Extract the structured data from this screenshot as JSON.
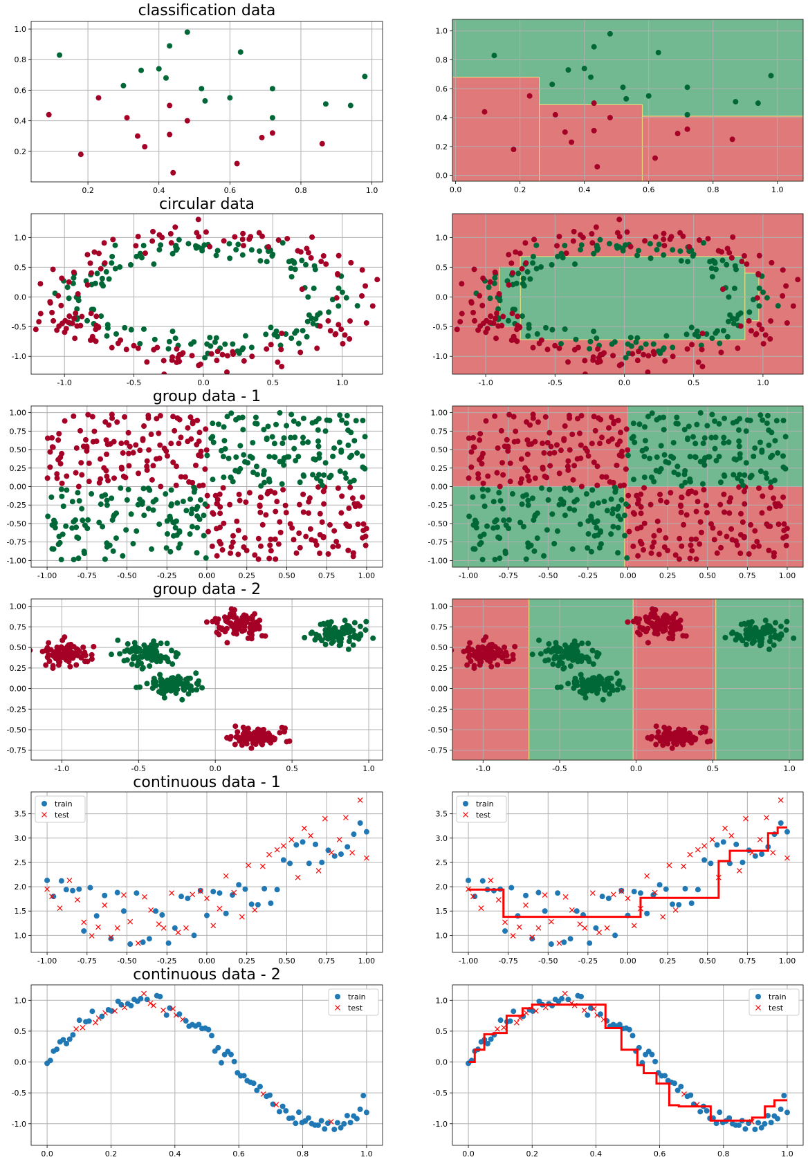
{
  "colors": {
    "red": "#a50026",
    "green": "#006837",
    "blue": "#1f77b4",
    "test_red": "#ff0000",
    "bg_red": "#e07a7a",
    "bg_green": "#72b890",
    "grid": "#b0b0b0"
  },
  "chart_data": [
    {
      "id": "p0",
      "type": "scatter",
      "title": "classification data",
      "grid": true,
      "xlim": [
        0.04,
        1.03
      ],
      "ylim": [
        0.0,
        1.05
      ],
      "xticks": [
        "0.2",
        "0.4",
        "0.6",
        "0.8",
        "1.0"
      ],
      "yticks": [
        "0.2",
        "0.4",
        "0.6",
        "0.8",
        "1.0"
      ],
      "series": [
        {
          "class": "red",
          "x": [
            0.09,
            0.18,
            0.23,
            0.31,
            0.34,
            0.36,
            0.43,
            0.43,
            0.44,
            0.48,
            0.62,
            0.69,
            0.72,
            0.86
          ],
          "y": [
            0.44,
            0.18,
            0.55,
            0.42,
            0.3,
            0.23,
            0.31,
            0.5,
            0.06,
            0.4,
            0.12,
            0.29,
            0.32,
            0.25
          ]
        },
        {
          "class": "green",
          "x": [
            0.12,
            0.3,
            0.35,
            0.4,
            0.42,
            0.43,
            0.48,
            0.52,
            0.53,
            0.6,
            0.63,
            0.72,
            0.72,
            0.87,
            0.94,
            0.98
          ],
          "y": [
            0.83,
            0.63,
            0.73,
            0.74,
            0.68,
            0.89,
            0.98,
            0.61,
            0.53,
            0.55,
            0.85,
            0.61,
            0.42,
            0.51,
            0.5,
            0.69
          ]
        }
      ]
    },
    {
      "id": "p1",
      "type": "scatter",
      "title": "",
      "grid": true,
      "background": "regions",
      "xlim": [
        -0.01,
        1.08
      ],
      "ylim": [
        -0.04,
        1.08
      ],
      "xticks": [
        "0.0",
        "0.2",
        "0.4",
        "0.6",
        "0.8",
        "1.0"
      ],
      "yticks": [
        "0.0",
        "0.2",
        "0.4",
        "0.6",
        "0.8",
        "1.0"
      ],
      "regions": [
        {
          "class": "red",
          "x0": -0.01,
          "x1": 0.26,
          "y0": -0.04,
          "y1": 0.68
        },
        {
          "class": "red",
          "x0": 0.26,
          "x1": 0.58,
          "y0": -0.04,
          "y1": 0.49
        },
        {
          "class": "red",
          "x0": 0.58,
          "x1": 1.08,
          "y0": -0.04,
          "y1": 0.41
        }
      ],
      "series": [
        {
          "class": "red",
          "x": [
            0.09,
            0.18,
            0.23,
            0.31,
            0.34,
            0.36,
            0.43,
            0.43,
            0.44,
            0.48,
            0.62,
            0.69,
            0.72,
            0.86
          ],
          "y": [
            0.44,
            0.18,
            0.55,
            0.42,
            0.3,
            0.23,
            0.31,
            0.5,
            0.06,
            0.4,
            0.12,
            0.29,
            0.32,
            0.25
          ]
        },
        {
          "class": "green",
          "x": [
            0.12,
            0.3,
            0.35,
            0.4,
            0.42,
            0.43,
            0.48,
            0.52,
            0.53,
            0.6,
            0.63,
            0.72,
            0.72,
            0.87,
            0.94,
            0.98
          ],
          "y": [
            0.83,
            0.63,
            0.73,
            0.74,
            0.68,
            0.89,
            0.98,
            0.61,
            0.53,
            0.55,
            0.85,
            0.61,
            0.42,
            0.51,
            0.5,
            0.69
          ]
        }
      ]
    },
    {
      "id": "p2",
      "type": "scatter",
      "title": "circular data",
      "grid": true,
      "xlim": [
        -1.24,
        1.29
      ],
      "ylim": [
        -1.3,
        1.4
      ],
      "xticks": [
        "-1.0",
        "-0.5",
        "0.0",
        "0.5",
        "1.0"
      ],
      "yticks": [
        "-1.0",
        "-0.5",
        "0.0",
        "0.5",
        "1.0"
      ],
      "generator": "circles",
      "count_per_class": 150
    },
    {
      "id": "p3",
      "type": "scatter",
      "title": "",
      "grid": true,
      "background": "regions",
      "xlim": [
        -1.24,
        1.29
      ],
      "ylim": [
        -1.3,
        1.4
      ],
      "xticks": [
        "-1.0",
        "-0.5",
        "0.0",
        "0.5",
        "1.0"
      ],
      "yticks": [
        "-1.0",
        "-0.5",
        "0.0",
        "0.5",
        "1.0"
      ],
      "generator": "circles",
      "count_per_class": 150,
      "base": "red",
      "regions": [
        {
          "class": "green",
          "x0": -0.75,
          "x1": 0.87,
          "y0": -0.72,
          "y1": 0.68
        },
        {
          "class": "green",
          "x0": -0.9,
          "x1": -0.75,
          "y0": -0.5,
          "y1": 0.5
        },
        {
          "class": "green",
          "x0": 0.87,
          "x1": 0.97,
          "y0": -0.4,
          "y1": 0.4
        }
      ]
    },
    {
      "id": "p4",
      "type": "scatter",
      "title": "group data - 1",
      "grid": true,
      "xlim": [
        -1.1,
        1.1
      ],
      "ylim": [
        -1.09,
        1.09
      ],
      "xticks": [
        "-1.00",
        "-0.75",
        "-0.50",
        "-0.25",
        "0.00",
        "0.25",
        "0.50",
        "0.75",
        "1.00"
      ],
      "yticks": [
        "-1.00",
        "-0.75",
        "-0.50",
        "-0.25",
        "0.00",
        "0.25",
        "0.50",
        "0.75",
        "1.00"
      ],
      "generator": "quadrants",
      "count": 500
    },
    {
      "id": "p5",
      "type": "scatter",
      "title": "",
      "grid": true,
      "background": "regions",
      "xlim": [
        -1.1,
        1.1
      ],
      "ylim": [
        -1.09,
        1.09
      ],
      "xticks": [
        "-1.00",
        "-0.75",
        "-0.50",
        "-0.25",
        "0.00",
        "0.25",
        "0.50",
        "0.75",
        "1.00"
      ],
      "yticks": [
        "-1.00",
        "-0.75",
        "-0.50",
        "-0.25",
        "0.00",
        "0.25",
        "0.50",
        "0.75",
        "1.00"
      ],
      "generator": "quadrants",
      "count": 500,
      "regions": [
        {
          "class": "red",
          "x0": -1.1,
          "x1": 0.0,
          "y0": 0.0,
          "y1": 1.09
        },
        {
          "class": "green",
          "x0": 0.0,
          "x1": 1.1,
          "y0": 0.0,
          "y1": 1.09
        },
        {
          "class": "green",
          "x0": -1.1,
          "x1": -0.02,
          "y0": -1.09,
          "y1": 0.0
        },
        {
          "class": "red",
          "x0": -0.02,
          "x1": 1.1,
          "y0": -1.09,
          "y1": 0.0
        }
      ]
    },
    {
      "id": "p6",
      "type": "scatter",
      "title": "group data - 2",
      "grid": true,
      "xlim": [
        -1.2,
        1.09
      ],
      "ylim": [
        -0.87,
        1.09
      ],
      "xticks": [
        "-1.0",
        "-0.5",
        "0.0",
        "0.5",
        "1.0"
      ],
      "yticks": [
        "-0.75",
        "-0.50",
        "-0.25",
        "0.00",
        "0.25",
        "0.50",
        "0.75",
        "1.00"
      ],
      "generator": "blobs",
      "clusters": [
        {
          "class": "red",
          "cx": -0.98,
          "cy": 0.41,
          "sx": 0.08,
          "sy": 0.07,
          "n": 90
        },
        {
          "class": "green",
          "cx": -0.45,
          "cy": 0.42,
          "sx": 0.09,
          "sy": 0.07,
          "n": 90
        },
        {
          "class": "green",
          "cx": -0.26,
          "cy": 0.03,
          "sx": 0.09,
          "sy": 0.06,
          "n": 90
        },
        {
          "class": "red",
          "cx": 0.17,
          "cy": 0.79,
          "sx": 0.08,
          "sy": 0.08,
          "n": 90
        },
        {
          "class": "red",
          "cx": 0.27,
          "cy": -0.58,
          "sx": 0.09,
          "sy": 0.05,
          "n": 90
        },
        {
          "class": "green",
          "cx": 0.78,
          "cy": 0.66,
          "sx": 0.09,
          "sy": 0.07,
          "n": 90
        }
      ]
    },
    {
      "id": "p7",
      "type": "scatter",
      "title": "",
      "grid": true,
      "background": "regions",
      "xlim": [
        -1.2,
        1.09
      ],
      "ylim": [
        -0.87,
        1.09
      ],
      "xticks": [
        "-1.0",
        "-0.5",
        "0.0",
        "0.5",
        "1.0"
      ],
      "yticks": [
        "-0.75",
        "-0.50",
        "-0.25",
        "0.00",
        "0.25",
        "0.50",
        "0.75",
        "1.00"
      ],
      "generator": "blobs",
      "clusters": [
        {
          "class": "red",
          "cx": -0.98,
          "cy": 0.41,
          "sx": 0.08,
          "sy": 0.07,
          "n": 90
        },
        {
          "class": "green",
          "cx": -0.45,
          "cy": 0.42,
          "sx": 0.09,
          "sy": 0.07,
          "n": 90
        },
        {
          "class": "green",
          "cx": -0.26,
          "cy": 0.03,
          "sx": 0.09,
          "sy": 0.06,
          "n": 90
        },
        {
          "class": "red",
          "cx": 0.17,
          "cy": 0.79,
          "sx": 0.08,
          "sy": 0.08,
          "n": 90
        },
        {
          "class": "red",
          "cx": 0.27,
          "cy": -0.58,
          "sx": 0.09,
          "sy": 0.05,
          "n": 90
        },
        {
          "class": "green",
          "cx": 0.78,
          "cy": 0.66,
          "sx": 0.09,
          "sy": 0.07,
          "n": 90
        }
      ],
      "regions": [
        {
          "class": "red",
          "x0": -1.2,
          "x1": -0.7,
          "y0": -0.87,
          "y1": 1.09
        },
        {
          "class": "green",
          "x0": -0.7,
          "x1": -0.02,
          "y0": -0.87,
          "y1": 1.09
        },
        {
          "class": "red",
          "x0": -0.02,
          "x1": 0.52,
          "y0": -0.87,
          "y1": 1.09
        },
        {
          "class": "green",
          "x0": 0.52,
          "x1": 1.09,
          "y0": -0.87,
          "y1": 1.09
        }
      ]
    },
    {
      "id": "p8",
      "type": "scatter",
      "title": "continuous data - 1",
      "grid": true,
      "legend": "top-left",
      "xlim": [
        -1.1,
        1.1
      ],
      "ylim": [
        0.65,
        3.95
      ],
      "xticks": [
        "-1.00",
        "-0.75",
        "-0.50",
        "-0.25",
        "0.00",
        "0.25",
        "0.50",
        "0.75",
        "1.00"
      ],
      "yticks": [
        "1.0",
        "1.5",
        "2.0",
        "2.5",
        "3.0",
        "3.5"
      ],
      "legend_labels": [
        "train",
        "test"
      ],
      "train": {
        "x": [
          -1.0,
          -0.96,
          -0.91,
          -0.88,
          -0.84,
          -0.8,
          -0.77,
          -0.73,
          -0.69,
          -0.64,
          -0.6,
          -0.56,
          -0.52,
          -0.48,
          -0.44,
          -0.4,
          -0.36,
          -0.32,
          -0.28,
          -0.24,
          -0.2,
          -0.16,
          -0.12,
          -0.08,
          -0.04,
          0.0,
          0.04,
          0.08,
          0.12,
          0.16,
          0.2,
          0.24,
          0.28,
          0.32,
          0.36,
          0.4,
          0.44,
          0.48,
          0.52,
          0.56,
          0.6,
          0.64,
          0.68,
          0.72,
          0.76,
          0.8,
          0.84,
          0.88,
          0.92,
          0.96,
          1.0
        ],
        "y": [
          2.13,
          1.8,
          2.12,
          1.94,
          1.92,
          1.95,
          1.09,
          1.98,
          1.4,
          1.82,
          0.93,
          1.88,
          1.5,
          0.82,
          1.87,
          0.86,
          0.93,
          1.5,
          1.42,
          0.84,
          1.15,
          1.8,
          1.76,
          1.0,
          1.92,
          1.41,
          1.9,
          1.87,
          1.45,
          1.83,
          2.04,
          1.95,
          1.64,
          1.63,
          1.96,
          1.66,
          1.94,
          2.55,
          2.48,
          2.86,
          2.92,
          2.48,
          2.87,
          2.5,
          2.75,
          2.63,
          2.67,
          2.82,
          3.08,
          3.31,
          3.13
        ]
      },
      "test": {
        "x": [
          -1.0,
          -0.97,
          -0.92,
          -0.86,
          -0.81,
          -0.77,
          -0.72,
          -0.68,
          -0.64,
          -0.6,
          -0.56,
          -0.52,
          -0.48,
          -0.43,
          -0.39,
          -0.35,
          -0.3,
          -0.27,
          -0.22,
          -0.18,
          -0.13,
          -0.09,
          -0.04,
          0.0,
          0.04,
          0.08,
          0.12,
          0.17,
          0.22,
          0.26,
          0.3,
          0.35,
          0.39,
          0.44,
          0.48,
          0.53,
          0.57,
          0.61,
          0.65,
          0.7,
          0.74,
          0.78,
          0.83,
          0.87,
          0.91,
          0.96,
          1.0
        ],
        "y": [
          1.95,
          1.8,
          1.56,
          2.13,
          1.73,
          1.27,
          0.99,
          1.17,
          1.62,
          0.96,
          1.15,
          1.83,
          1.28,
          0.84,
          1.79,
          1.52,
          1.23,
          1.15,
          1.87,
          1.06,
          1.15,
          1.84,
          1.91,
          1.76,
          1.2,
          1.55,
          2.22,
          1.88,
          1.38,
          2.44,
          1.52,
          2.42,
          2.66,
          2.76,
          2.84,
          2.97,
          2.19,
          3.2,
          3.05,
          2.33,
          3.4,
          2.7,
          2.97,
          3.42,
          2.7,
          3.78,
          2.59
        ]
      }
    },
    {
      "id": "p9",
      "type": "line",
      "title": "",
      "grid": true,
      "legend": "top-left",
      "xlim": [
        -1.1,
        1.1
      ],
      "ylim": [
        0.65,
        3.95
      ],
      "xticks": [
        "-1.00",
        "-0.75",
        "-0.50",
        "-0.25",
        "0.00",
        "0.25",
        "0.50",
        "0.75",
        "1.00"
      ],
      "yticks": [
        "1.0",
        "1.5",
        "2.0",
        "2.5",
        "3.0",
        "3.5"
      ],
      "legend_labels": [
        "train",
        "test"
      ],
      "same_points_as": "p8",
      "step": {
        "x": [
          -1.0,
          -0.78,
          -0.78,
          0.08,
          0.08,
          0.57,
          0.57,
          0.64,
          0.64,
          0.88,
          0.88,
          0.94,
          0.94,
          1.0
        ],
        "y": [
          1.94,
          1.94,
          1.38,
          1.38,
          1.77,
          1.77,
          2.53,
          2.53,
          2.74,
          2.74,
          3.1,
          3.1,
          3.22,
          3.22
        ]
      }
    },
    {
      "id": "p10",
      "type": "scatter",
      "title": "continuous data - 2",
      "grid": true,
      "legend": "top-right",
      "xlim": [
        -0.05,
        1.05
      ],
      "ylim": [
        -1.35,
        1.25
      ],
      "xticks": [
        "0.0",
        "0.2",
        "0.4",
        "0.6",
        "0.8",
        "1.0"
      ],
      "yticks": [
        "-1.0",
        "-0.5",
        "0.0",
        "0.5",
        "1.0"
      ],
      "legend_labels": [
        "train",
        "test"
      ],
      "generator": "sine",
      "count": 100
    },
    {
      "id": "p11",
      "type": "line",
      "title": "",
      "grid": true,
      "legend": "top-right",
      "xlim": [
        -0.05,
        1.05
      ],
      "ylim": [
        -1.35,
        1.25
      ],
      "xticks": [
        "0.0",
        "0.2",
        "0.4",
        "0.6",
        "0.8",
        "1.0"
      ],
      "yticks": [
        "-1.0",
        "-0.5",
        "0.0",
        "0.5",
        "1.0"
      ],
      "legend_labels": [
        "train",
        "test"
      ],
      "generator": "sine",
      "count": 100,
      "step": {
        "x": [
          0.0,
          0.02,
          0.02,
          0.05,
          0.05,
          0.08,
          0.08,
          0.12,
          0.12,
          0.17,
          0.17,
          0.2,
          0.2,
          0.43,
          0.43,
          0.48,
          0.48,
          0.53,
          0.53,
          0.55,
          0.55,
          0.59,
          0.59,
          0.63,
          0.63,
          0.66,
          0.66,
          0.76,
          0.76,
          0.89,
          0.89,
          0.93,
          0.93,
          0.96,
          0.96,
          1.0
        ],
        "y": [
          0.0,
          0.0,
          0.2,
          0.2,
          0.45,
          0.45,
          0.47,
          0.47,
          0.75,
          0.75,
          0.87,
          0.87,
          0.93,
          0.93,
          0.55,
          0.55,
          0.2,
          0.2,
          -0.05,
          -0.05,
          -0.18,
          -0.18,
          -0.35,
          -0.35,
          -0.7,
          -0.7,
          -0.72,
          -0.72,
          -0.95,
          -0.95,
          -0.9,
          -0.9,
          -0.72,
          -0.72,
          -0.62,
          -0.62
        ]
      }
    }
  ]
}
